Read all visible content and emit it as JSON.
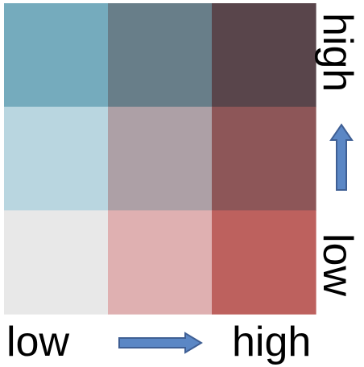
{
  "legend": {
    "x_axis": {
      "low_label": "low",
      "high_label": "high"
    },
    "y_axis": {
      "low_label": "low",
      "high_label": "high"
    },
    "arrow_color": "#5b87c5",
    "arrow_stroke": "#3f5f94",
    "grid_rows_top_to_bottom": [
      [
        "#75abbd",
        "#687e89",
        "#59454b"
      ],
      [
        "#b9d6e0",
        "#ada0a6",
        "#8d5658"
      ],
      [
        "#e8e8e8",
        "#dfb0b1",
        "#bd615e"
      ]
    ]
  }
}
